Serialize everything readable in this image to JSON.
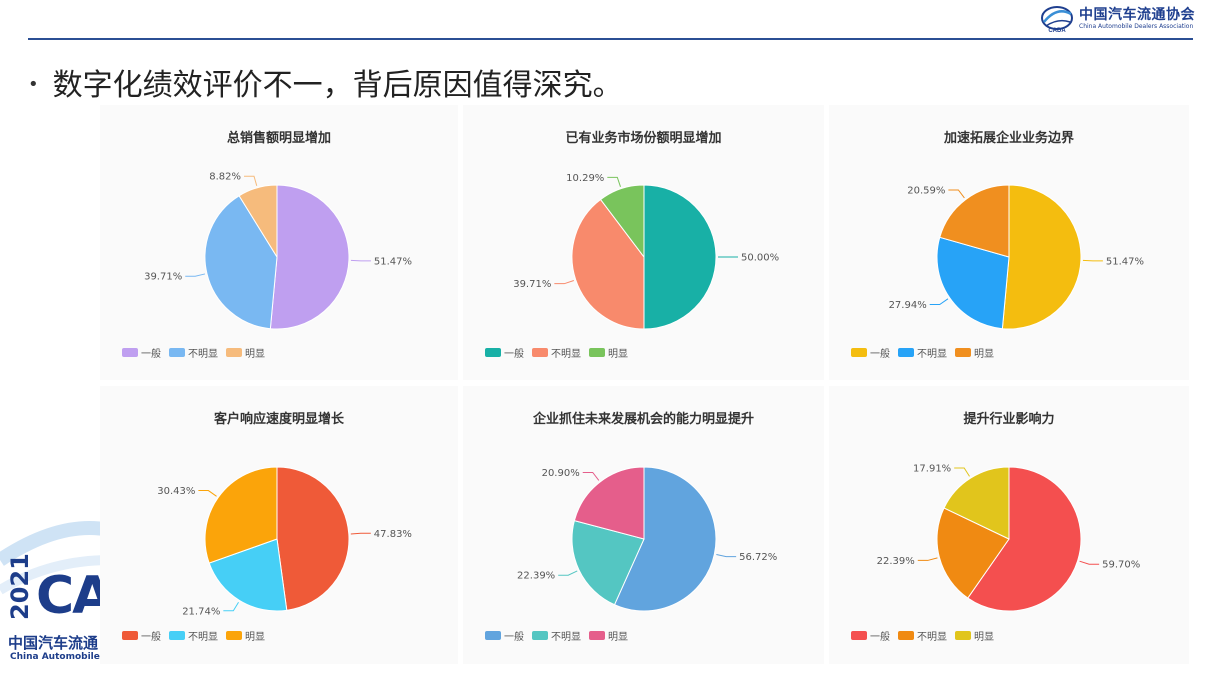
{
  "header": {
    "logo_cn": "中国汽车流通协会",
    "logo_en": "China Automobile Dealers Association",
    "logo_mark": "CADA"
  },
  "slide": {
    "bullet": "•",
    "title": "数字化绩效评价不一，背后原因值得深究。"
  },
  "watermark": {
    "year": "2021",
    "letters": "CA",
    "cn": "中国汽车流通",
    "en": "China Automobile Dea"
  },
  "chart_data": [
    {
      "type": "pie",
      "title": "总销售额明显增加",
      "categories": [
        "一般",
        "不明显",
        "明显"
      ],
      "values": [
        51.47,
        39.71,
        8.82
      ],
      "labels": [
        "51.47%",
        "39.71%",
        "8.82%"
      ],
      "colors": [
        "#bf9ff0",
        "#79b8f2",
        "#f6bb7c"
      ],
      "legend": "bottom-left"
    },
    {
      "type": "pie",
      "title": "已有业务市场份额明显增加",
      "categories": [
        "一般",
        "不明显",
        "明显"
      ],
      "values": [
        50.0,
        39.71,
        10.29
      ],
      "labels": [
        "50.00%",
        "39.71%",
        "10.29%"
      ],
      "colors": [
        "#18b0a6",
        "#f88a6c",
        "#79c45c"
      ],
      "legend": "bottom-left"
    },
    {
      "type": "pie",
      "title": "加速拓展企业业务边界",
      "categories": [
        "一般",
        "不明显",
        "明显"
      ],
      "values": [
        51.47,
        27.94,
        20.59
      ],
      "labels": [
        "51.47%",
        "27.94%",
        "20.59%"
      ],
      "colors": [
        "#f4bd0f",
        "#27a3f7",
        "#f08f1f"
      ],
      "legend": "bottom-left"
    },
    {
      "type": "pie",
      "title": "客户响应速度明显增长",
      "categories": [
        "一般",
        "不明显",
        "明显"
      ],
      "values": [
        47.83,
        21.74,
        30.43
      ],
      "labels": [
        "47.83%",
        "21.74%",
        "30.43%"
      ],
      "colors": [
        "#ef5a38",
        "#46cff6",
        "#fba40a"
      ],
      "legend": "bottom-left"
    },
    {
      "type": "pie",
      "title": "企业抓住未来发展机会的能力明显提升",
      "categories": [
        "一般",
        "不明显",
        "明显"
      ],
      "values": [
        56.72,
        22.39,
        20.9
      ],
      "labels": [
        "56.72%",
        "22.39%",
        "20.90%"
      ],
      "colors": [
        "#61a4de",
        "#54c6c2",
        "#e55e8b"
      ],
      "legend": "bottom-left"
    },
    {
      "type": "pie",
      "title": "提升行业影响力",
      "categories": [
        "一般",
        "不明显",
        "明显"
      ],
      "values": [
        59.7,
        22.39,
        17.91
      ],
      "labels": [
        "59.70%",
        "22.39%",
        "17.91%"
      ],
      "colors": [
        "#f44f4f",
        "#f08a12",
        "#e1c51c"
      ],
      "legend": "bottom-left"
    }
  ]
}
